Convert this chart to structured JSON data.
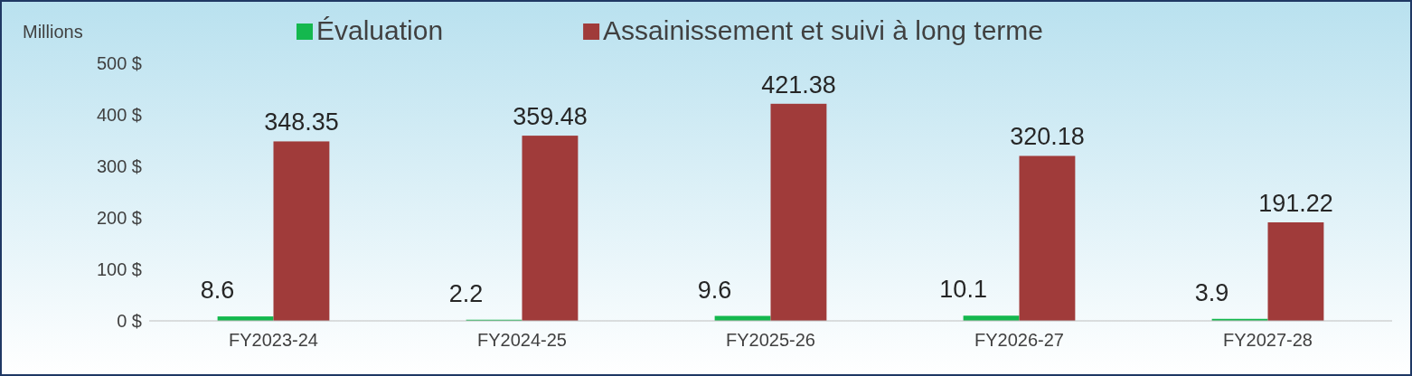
{
  "chart_data": {
    "type": "bar",
    "ylabel": "Millions",
    "categories": [
      "FY2023-24",
      "FY2024-25",
      "FY2025-26",
      "FY2026-27",
      "FY2027-28"
    ],
    "series": [
      {
        "name": "Évaluation",
        "color": "#14b84e",
        "values": [
          8.6,
          2.2,
          9.6,
          10.1,
          3.9
        ]
      },
      {
        "name": "Assainissement et suivi à long terme",
        "color": "#a03b3a",
        "values": [
          348.35,
          359.48,
          421.38,
          320.18,
          191.22
        ]
      }
    ],
    "ylim": [
      0,
      500
    ],
    "yticks": [
      {
        "value": 0,
        "label": "0 $"
      },
      {
        "value": 100,
        "label": "100 $"
      },
      {
        "value": 200,
        "label": "200 $"
      },
      {
        "value": 300,
        "label": "300 $"
      },
      {
        "value": 400,
        "label": "400 $"
      },
      {
        "value": 500,
        "label": "500 $"
      }
    ],
    "data_labels": true,
    "legend": "top"
  }
}
